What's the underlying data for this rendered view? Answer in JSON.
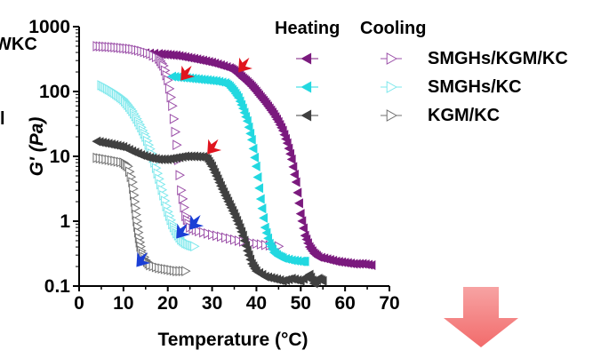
{
  "chart_data": {
    "type": "scatter",
    "title": "",
    "xlabel": "Temperature (°C)",
    "ylabel": "G' (Pa)",
    "xlim": [
      0,
      70
    ],
    "ylim": [
      0.1,
      1000
    ],
    "yscale": "log",
    "x_ticks": [
      "0",
      "10",
      "20",
      "30",
      "40",
      "50",
      "60",
      "70"
    ],
    "y_ticks": [
      "0.1",
      "1",
      "10",
      "100",
      "1000"
    ],
    "legend_headers": [
      "Heating",
      "Cooling"
    ],
    "legend_position": "top-right",
    "clipped_left_text": [
      "WKC",
      "l"
    ],
    "series": [
      {
        "name": "SMGHs/KGM/KC",
        "mode": "Heating",
        "color": "#7b1a7e",
        "marker": "triangle-left",
        "points": [
          [
            15,
            390
          ],
          [
            18,
            380
          ],
          [
            20,
            370
          ],
          [
            22,
            360
          ],
          [
            24,
            340
          ],
          [
            26,
            320
          ],
          [
            28,
            300
          ],
          [
            30,
            280
          ],
          [
            32,
            255
          ],
          [
            34,
            230
          ],
          [
            35,
            210
          ],
          [
            36,
            185
          ],
          [
            37,
            160
          ],
          [
            38,
            140
          ],
          [
            39,
            120
          ],
          [
            40,
            100
          ],
          [
            41,
            82
          ],
          [
            42,
            68
          ],
          [
            43,
            55
          ],
          [
            44,
            44
          ],
          [
            45,
            34
          ],
          [
            46,
            25
          ],
          [
            47,
            16
          ],
          [
            48,
            9
          ],
          [
            49,
            4
          ],
          [
            50,
            1.3
          ],
          [
            51,
            0.6
          ],
          [
            52,
            0.4
          ],
          [
            53,
            0.32
          ],
          [
            54,
            0.28
          ],
          [
            56,
            0.26
          ],
          [
            58,
            0.24
          ],
          [
            60,
            0.23
          ],
          [
            62,
            0.22
          ],
          [
            64,
            0.22
          ],
          [
            66,
            0.21
          ]
        ]
      },
      {
        "name": "SMGHs/KGM/KC",
        "mode": "Cooling",
        "color": "#9b4fa8",
        "marker": "triangle-right",
        "points": [
          [
            4,
            500
          ],
          [
            6,
            490
          ],
          [
            8,
            480
          ],
          [
            10,
            465
          ],
          [
            12,
            450
          ],
          [
            14,
            420
          ],
          [
            16,
            380
          ],
          [
            18,
            320
          ],
          [
            19,
            250
          ],
          [
            20,
            150
          ],
          [
            21,
            60
          ],
          [
            22,
            15
          ],
          [
            23,
            3
          ],
          [
            24,
            1.2
          ],
          [
            25,
            0.8
          ],
          [
            27,
            0.7
          ],
          [
            30,
            0.62
          ],
          [
            33,
            0.56
          ],
          [
            36,
            0.5
          ],
          [
            39,
            0.46
          ],
          [
            42,
            0.43
          ],
          [
            45,
            0.41
          ]
        ]
      },
      {
        "name": "SMGHs/KC",
        "mode": "Heating",
        "color": "#22d8e0",
        "marker": "triangle-left",
        "points": [
          [
            21,
            170
          ],
          [
            23,
            165
          ],
          [
            25,
            160
          ],
          [
            27,
            155
          ],
          [
            29,
            150
          ],
          [
            31,
            145
          ],
          [
            33,
            135
          ],
          [
            34,
            120
          ],
          [
            35,
            100
          ],
          [
            36,
            80
          ],
          [
            37,
            55
          ],
          [
            38,
            35
          ],
          [
            39,
            18
          ],
          [
            40,
            7
          ],
          [
            41,
            2.2
          ],
          [
            42,
            0.8
          ],
          [
            43,
            0.45
          ],
          [
            44,
            0.33
          ],
          [
            45,
            0.29
          ],
          [
            46,
            0.27
          ],
          [
            48,
            0.25
          ],
          [
            50,
            0.24
          ],
          [
            51,
            0.24
          ]
        ]
      },
      {
        "name": "SMGHs/KC",
        "mode": "Cooling",
        "color": "#7ee8ec",
        "marker": "triangle-right",
        "points": [
          [
            5,
            125
          ],
          [
            6,
            115
          ],
          [
            7,
            105
          ],
          [
            8,
            95
          ],
          [
            9,
            85
          ],
          [
            10,
            75
          ],
          [
            11,
            62
          ],
          [
            12,
            50
          ],
          [
            13,
            38
          ],
          [
            14,
            28
          ],
          [
            15,
            20
          ],
          [
            16,
            13
          ],
          [
            17,
            8
          ],
          [
            18,
            4.5
          ],
          [
            19,
            2.5
          ],
          [
            20,
            1.4
          ],
          [
            21,
            0.9
          ],
          [
            22,
            0.65
          ],
          [
            23,
            0.52
          ],
          [
            24,
            0.46
          ],
          [
            25,
            0.43
          ],
          [
            26,
            0.41
          ]
        ]
      },
      {
        "name": "KGM/KC",
        "mode": "Heating",
        "color": "#404040",
        "marker": "triangle-left",
        "points": [
          [
            4,
            17
          ],
          [
            6,
            16
          ],
          [
            8,
            15
          ],
          [
            10,
            14
          ],
          [
            12,
            12
          ],
          [
            14,
            10.5
          ],
          [
            16,
            9.5
          ],
          [
            18,
            9
          ],
          [
            20,
            9
          ],
          [
            22,
            9.5
          ],
          [
            24,
            10
          ],
          [
            26,
            10
          ],
          [
            28,
            9.8
          ],
          [
            29,
            9
          ],
          [
            30,
            7
          ],
          [
            31,
            5
          ],
          [
            32,
            3.5
          ],
          [
            33,
            2.5
          ],
          [
            34,
            1.8
          ],
          [
            35,
            1.3
          ],
          [
            36,
            0.9
          ],
          [
            37,
            0.6
          ],
          [
            38,
            0.35
          ],
          [
            39,
            0.22
          ],
          [
            40,
            0.17
          ],
          [
            42,
            0.14
          ],
          [
            44,
            0.13
          ],
          [
            46,
            0.12
          ],
          [
            48,
            0.13
          ],
          [
            50,
            0.12
          ],
          [
            52,
            0.15
          ],
          [
            53,
            0.11
          ],
          [
            54,
            0.13
          ],
          [
            55,
            0.12
          ]
        ]
      },
      {
        "name": "KGM/KC",
        "mode": "Cooling",
        "color": "#707070",
        "marker": "triangle-right",
        "points": [
          [
            4,
            9.5
          ],
          [
            6,
            9
          ],
          [
            8,
            8.5
          ],
          [
            10,
            8
          ],
          [
            11,
            7
          ],
          [
            12,
            4
          ],
          [
            12.5,
            2
          ],
          [
            13,
            1
          ],
          [
            13.5,
            0.55
          ],
          [
            14,
            0.35
          ],
          [
            15,
            0.25
          ],
          [
            16,
            0.21
          ],
          [
            18,
            0.19
          ],
          [
            20,
            0.18
          ],
          [
            22,
            0.17
          ],
          [
            24,
            0.17
          ]
        ]
      }
    ],
    "annotations": [
      {
        "type": "arrow",
        "color": "red",
        "at": [
          23,
          150
        ]
      },
      {
        "type": "arrow",
        "color": "red",
        "at": [
          36,
          200
        ]
      },
      {
        "type": "arrow",
        "color": "red",
        "at": [
          29,
          11
        ]
      },
      {
        "type": "arrow",
        "color": "blue",
        "at": [
          22,
          0.55
        ]
      },
      {
        "type": "arrow",
        "color": "blue",
        "at": [
          25,
          0.75
        ]
      },
      {
        "type": "arrow",
        "color": "blue",
        "at": [
          13,
          0.2
        ]
      }
    ]
  }
}
